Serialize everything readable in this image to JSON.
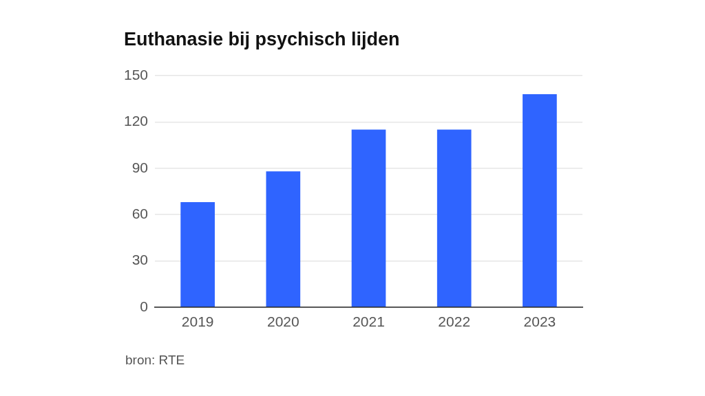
{
  "chart_data": {
    "type": "bar",
    "title": "Euthanasie bij psychisch lijden",
    "categories": [
      "2019",
      "2020",
      "2021",
      "2022",
      "2023"
    ],
    "values": [
      68,
      88,
      115,
      115,
      138
    ],
    "color": "#2f64ff",
    "ylim": [
      0,
      150
    ],
    "yticks": [
      0,
      30,
      60,
      90,
      120,
      150
    ],
    "grid": "y",
    "legend": false,
    "annotations": [
      "bron: RTE"
    ]
  }
}
